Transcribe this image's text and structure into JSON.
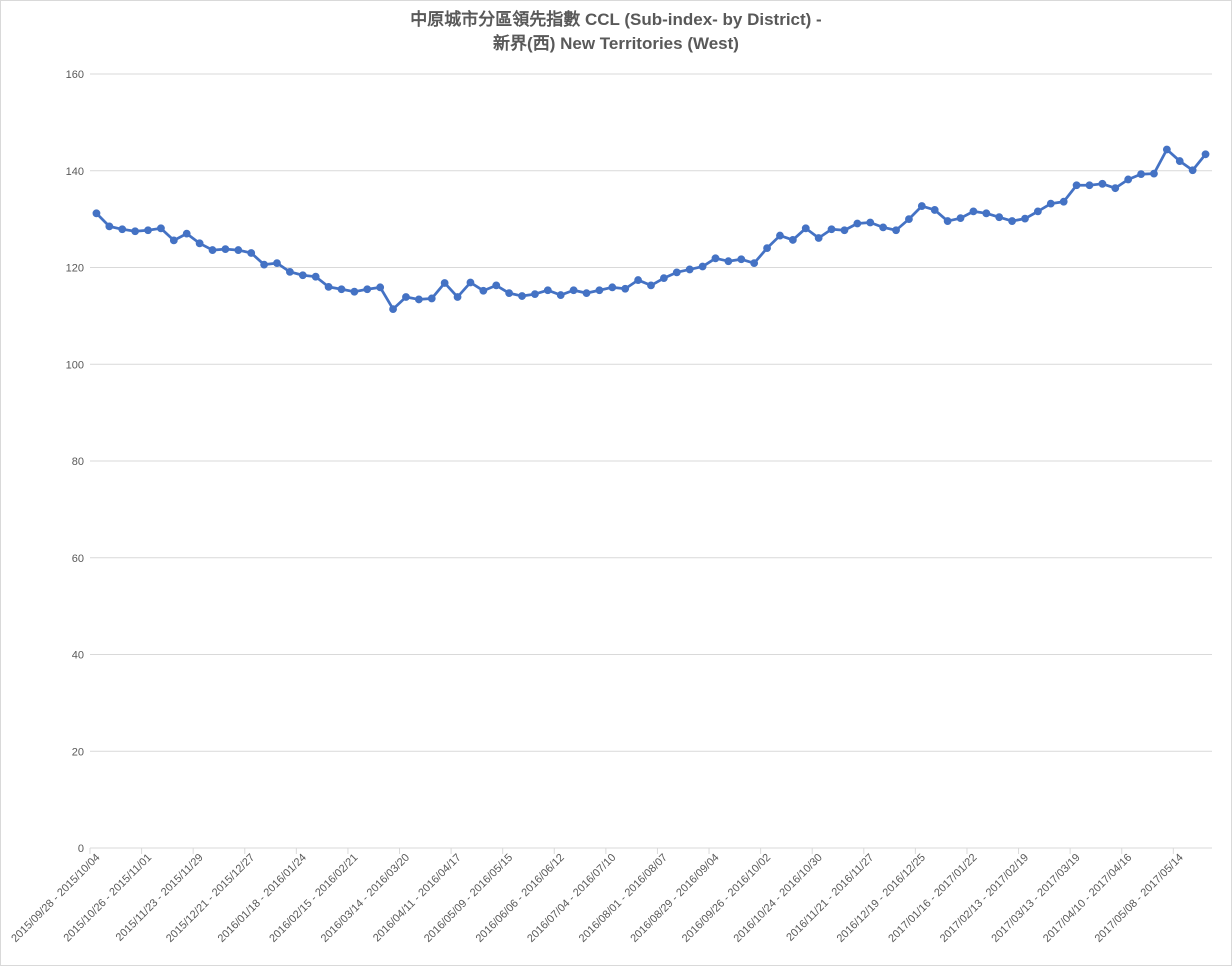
{
  "chart_data": {
    "type": "line",
    "title_line1": "中原城市分區領先指數 CCL (Sub-index- by District) -",
    "title_line2": "新界(西) New Territories (West)",
    "xlabel": "",
    "ylabel": "",
    "ylim": [
      0,
      160
    ],
    "yticks": [
      0,
      20,
      40,
      60,
      80,
      100,
      120,
      140,
      160
    ],
    "grid": true,
    "legend": "none",
    "series_color": "#4472c4",
    "x_tick_labels": [
      "2015/09/28 - 2015/10/04",
      "2015/10/26 - 2015/11/01",
      "2015/11/23 - 2015/11/29",
      "2015/12/21 - 2015/12/27",
      "2016/01/18 - 2016/01/24",
      "2016/02/15 - 2016/02/21",
      "2016/03/14 - 2016/03/20",
      "2016/04/11 - 2016/04/17",
      "2016/05/09 - 2016/05/15",
      "2016/06/06 - 2016/06/12",
      "2016/07/04 - 2016/07/10",
      "2016/08/01 - 2016/08/07",
      "2016/08/29 - 2016/09/04",
      "2016/09/26 - 2016/10/02",
      "2016/10/24 - 2016/10/30",
      "2016/11/21 - 2016/11/27",
      "2016/12/19 - 2016/12/25",
      "2017/01/16 - 2017/01/22",
      "2017/02/13 - 2017/02/19",
      "2017/03/13 - 2017/03/19",
      "2017/04/10 - 2017/04/16",
      "2017/05/08 - 2017/05/14"
    ],
    "values": [
      131.2,
      128.5,
      127.9,
      127.5,
      127.7,
      128.1,
      125.6,
      127.0,
      125.0,
      123.6,
      123.8,
      123.6,
      123.0,
      120.6,
      120.9,
      119.1,
      118.4,
      118.1,
      116.0,
      115.5,
      115.0,
      115.5,
      115.9,
      111.4,
      113.9,
      113.4,
      113.6,
      116.8,
      113.9,
      116.9,
      115.2,
      116.3,
      114.7,
      114.1,
      114.5,
      115.3,
      114.3,
      115.3,
      114.7,
      115.3,
      115.9,
      115.6,
      117.4,
      116.3,
      117.8,
      119.0,
      119.6,
      120.2,
      121.9,
      121.3,
      121.7,
      120.9,
      124.0,
      126.6,
      125.7,
      128.1,
      126.1,
      127.9,
      127.7,
      129.1,
      129.3,
      128.3,
      127.7,
      130.0,
      132.7,
      131.9,
      129.6,
      130.2,
      131.6,
      131.2,
      130.4,
      129.6,
      130.1,
      131.6,
      133.2,
      133.6,
      137.0,
      137.0,
      137.3,
      136.4,
      138.2,
      139.3,
      139.4,
      144.4,
      142.0,
      140.1,
      143.4
    ]
  }
}
